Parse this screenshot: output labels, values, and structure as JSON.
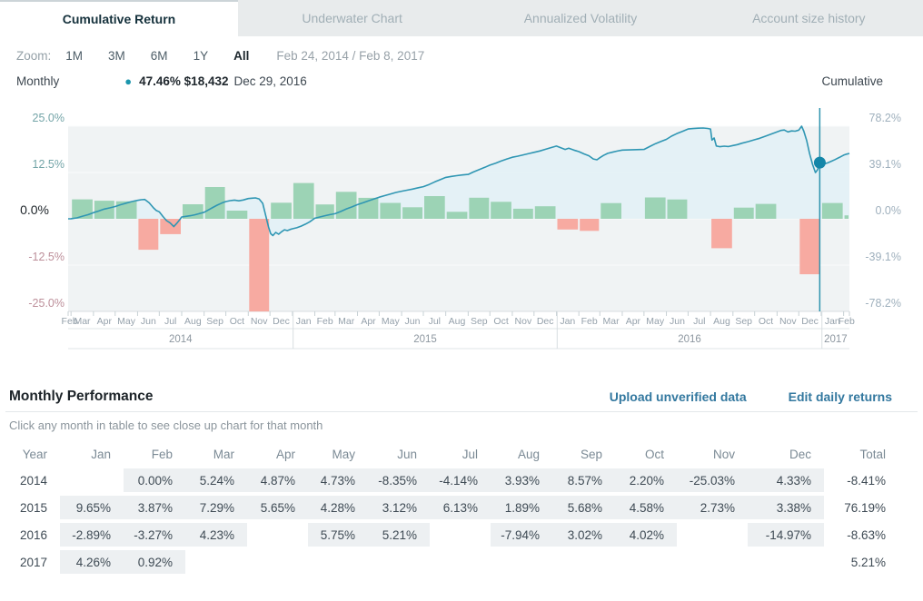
{
  "tabs": [
    {
      "label": "Cumulative Return",
      "active": true
    },
    {
      "label": "Underwater Chart",
      "active": false
    },
    {
      "label": "Annualized Volatility",
      "active": false
    },
    {
      "label": "Account size history",
      "active": false
    }
  ],
  "zoom_bar": {
    "label": "Zoom:",
    "options": [
      "1M",
      "3M",
      "6M",
      "1Y",
      "All"
    ],
    "active_option": "All",
    "date_range": "Feb 24, 2014 / Feb 8, 2017"
  },
  "legend": {
    "left_label": "Monthly",
    "marker_value": "47.46% $18,432",
    "marker_date": "Dec 29, 2016",
    "right_label": "Cumulative"
  },
  "chart_data": {
    "type": "combo",
    "bar_series_name": "Monthly",
    "line_series_name": "Cumulative",
    "left_axis": {
      "ticks": [
        "25.0%",
        "12.5%",
        "0.0%",
        "-12.5%",
        "-25.0%"
      ],
      "values": [
        25,
        12.5,
        0,
        -12.5,
        -25
      ]
    },
    "right_axis": {
      "ticks": [
        "78.2%",
        "39.1%",
        "0.0%",
        "-39.1%",
        "-78.2%"
      ],
      "values": [
        78.2,
        39.1,
        0,
        -39.1,
        -78.2
      ]
    },
    "x_range": {
      "start": "Feb 24, 2014",
      "end": "Feb 8, 2017",
      "total_days": 1080
    },
    "x_months": [
      "Feb",
      "Mar",
      "Apr",
      "May",
      "Jun",
      "Jul",
      "Aug",
      "Sep",
      "Oct",
      "Nov",
      "Dec",
      "Jan",
      "Feb",
      "Mar",
      "Apr",
      "May",
      "Jun",
      "Jul",
      "Aug",
      "Sep",
      "Oct",
      "Nov",
      "Dec",
      "Jan",
      "Feb",
      "Mar",
      "Apr",
      "May",
      "Jun",
      "Jul",
      "Aug",
      "Sep",
      "Oct",
      "Nov",
      "Dec",
      "Jan",
      "Feb"
    ],
    "month_boundaries_days": [
      0,
      4,
      35,
      65,
      96,
      126,
      157,
      188,
      218,
      249,
      279,
      310,
      341,
      369,
      400,
      430,
      461,
      491,
      522,
      553,
      583,
      614,
      644,
      675,
      706,
      735,
      766,
      796,
      827,
      857,
      888,
      919,
      949,
      980,
      1010,
      1041,
      1072,
      1080
    ],
    "monthly_returns": [
      0.0,
      5.24,
      4.87,
      4.73,
      -8.35,
      -4.14,
      3.93,
      8.57,
      2.2,
      -25.03,
      4.33,
      9.65,
      3.87,
      7.29,
      5.65,
      4.28,
      3.12,
      6.13,
      1.89,
      5.68,
      4.58,
      2.73,
      3.38,
      -2.89,
      -3.27,
      4.23,
      null,
      5.75,
      5.21,
      null,
      -7.94,
      3.02,
      4.02,
      null,
      -14.97,
      4.26,
      0.92
    ],
    "year_sections": [
      {
        "label": "2014",
        "start_d": 0,
        "end_d": 311
      },
      {
        "label": "2015",
        "start_d": 311,
        "end_d": 676
      },
      {
        "label": "2016",
        "start_d": 676,
        "end_d": 1042
      },
      {
        "label": "2017",
        "start_d": 1042,
        "end_d": 1080
      }
    ],
    "cumulative_line": [
      [
        0,
        0
      ],
      [
        4,
        0.1
      ],
      [
        12,
        0.8
      ],
      [
        20,
        2.2
      ],
      [
        28,
        3.5
      ],
      [
        35,
        5.24
      ],
      [
        42,
        6.5
      ],
      [
        50,
        8.2
      ],
      [
        58,
        9.3
      ],
      [
        65,
        10.37
      ],
      [
        72,
        11.8
      ],
      [
        80,
        13.2
      ],
      [
        88,
        14.6
      ],
      [
        96,
        15.59
      ],
      [
        101,
        16.1
      ],
      [
        106,
        16.3
      ],
      [
        112,
        13.5
      ],
      [
        118,
        9.2
      ],
      [
        122,
        7
      ],
      [
        126,
        5.94
      ],
      [
        131,
        2
      ],
      [
        136,
        -1.5
      ],
      [
        141,
        -3.5
      ],
      [
        146,
        -6.6
      ],
      [
        150,
        -4
      ],
      [
        153,
        -1.8
      ],
      [
        157,
        1.55
      ],
      [
        163,
        2.1
      ],
      [
        169,
        2.6
      ],
      [
        175,
        3.4
      ],
      [
        181,
        4.3
      ],
      [
        188,
        5.54
      ],
      [
        194,
        7.5
      ],
      [
        200,
        9.6
      ],
      [
        206,
        11.5
      ],
      [
        212,
        13.2
      ],
      [
        218,
        14.59
      ],
      [
        224,
        15.3
      ],
      [
        230,
        15.8
      ],
      [
        236,
        15.2
      ],
      [
        242,
        15.9
      ],
      [
        249,
        17.11
      ],
      [
        254,
        17.4
      ],
      [
        259,
        17.6
      ],
      [
        264,
        16.8
      ],
      [
        269,
        13
      ],
      [
        273,
        3
      ],
      [
        277,
        -7
      ],
      [
        280,
        -12.6
      ],
      [
        283,
        -14.2
      ],
      [
        287,
        -11.5
      ],
      [
        291,
        -13
      ],
      [
        295,
        -11
      ],
      [
        299,
        -9.3
      ],
      [
        303,
        -10
      ],
      [
        307,
        -9
      ],
      [
        310,
        -8.41
      ],
      [
        316,
        -7.6
      ],
      [
        322,
        -6.2
      ],
      [
        328,
        -4.5
      ],
      [
        334,
        -2.5
      ],
      [
        341,
        0.44
      ],
      [
        348,
        1.5
      ],
      [
        355,
        2.6
      ],
      [
        362,
        3.5
      ],
      [
        369,
        4.32
      ],
      [
        377,
        6.2
      ],
      [
        385,
        8.4
      ],
      [
        392,
        10
      ],
      [
        400,
        11.93
      ],
      [
        408,
        13.6
      ],
      [
        415,
        15.2
      ],
      [
        423,
        16.8
      ],
      [
        430,
        18.25
      ],
      [
        438,
        19.6
      ],
      [
        446,
        21
      ],
      [
        453,
        22.2
      ],
      [
        461,
        23.31
      ],
      [
        469,
        24.2
      ],
      [
        476,
        25.1
      ],
      [
        484,
        26.2
      ],
      [
        491,
        27.16
      ],
      [
        499,
        29
      ],
      [
        507,
        31.2
      ],
      [
        514,
        33
      ],
      [
        522,
        34.96
      ],
      [
        530,
        35.8
      ],
      [
        537,
        36.4
      ],
      [
        545,
        37
      ],
      [
        553,
        37.51
      ],
      [
        560,
        39.5
      ],
      [
        568,
        41.5
      ],
      [
        576,
        43.5
      ],
      [
        583,
        45.32
      ],
      [
        591,
        47
      ],
      [
        598,
        48.7
      ],
      [
        606,
        50.4
      ],
      [
        614,
        51.97
      ],
      [
        621,
        52.8
      ],
      [
        629,
        54
      ],
      [
        637,
        55.1
      ],
      [
        644,
        56.12
      ],
      [
        652,
        57.3
      ],
      [
        660,
        58.7
      ],
      [
        668,
        60.2
      ],
      [
        675,
        61.4
      ],
      [
        681,
        60
      ],
      [
        687,
        58.6
      ],
      [
        692,
        59.6
      ],
      [
        699,
        58
      ],
      [
        706,
        56.73
      ],
      [
        713,
        54.8
      ],
      [
        720,
        53.2
      ],
      [
        726,
        50.5
      ],
      [
        731,
        49.8
      ],
      [
        735,
        51.61
      ],
      [
        740,
        53.5
      ],
      [
        746,
        55.3
      ],
      [
        752,
        56.2
      ],
      [
        759,
        57.2
      ],
      [
        766,
        58.02
      ],
      [
        776,
        58.2
      ],
      [
        786,
        58.4
      ],
      [
        796,
        58.6
      ],
      [
        804,
        61
      ],
      [
        812,
        63.5
      ],
      [
        820,
        65.5
      ],
      [
        827,
        67.11
      ],
      [
        834,
        69.8
      ],
      [
        841,
        71.8
      ],
      [
        849,
        73.8
      ],
      [
        857,
        75.81
      ],
      [
        864,
        76.2
      ],
      [
        871,
        76.5
      ],
      [
        878,
        76.7
      ],
      [
        884,
        76.3
      ],
      [
        888,
        75.81
      ],
      [
        890,
        66.5
      ],
      [
        893,
        68.2
      ],
      [
        896,
        61.5
      ],
      [
        901,
        60.9
      ],
      [
        907,
        61.3
      ],
      [
        913,
        61
      ],
      [
        919,
        61.85
      ],
      [
        925,
        62.6
      ],
      [
        931,
        63.8
      ],
      [
        940,
        65.2
      ],
      [
        949,
        66.74
      ],
      [
        956,
        68
      ],
      [
        964,
        69.8
      ],
      [
        972,
        71.6
      ],
      [
        980,
        73.45
      ],
      [
        985,
        74.6
      ],
      [
        990,
        75
      ],
      [
        995,
        73.4
      ],
      [
        1000,
        74.2
      ],
      [
        1005,
        74
      ],
      [
        1010,
        74.9
      ],
      [
        1014,
        78.2
      ],
      [
        1017,
        74
      ],
      [
        1021,
        66
      ],
      [
        1025,
        55
      ],
      [
        1029,
        46
      ],
      [
        1033,
        39
      ],
      [
        1036,
        41.5
      ],
      [
        1039,
        47.46
      ],
      [
        1042,
        46
      ],
      [
        1046,
        46.5
      ],
      [
        1050,
        47.2
      ],
      [
        1055,
        48.6
      ],
      [
        1060,
        50
      ],
      [
        1066,
        51.8
      ],
      [
        1072,
        53.76
      ],
      [
        1076,
        54.6
      ],
      [
        1080,
        55.18
      ]
    ],
    "marker": {
      "d": 1039,
      "value": 47.46,
      "date": "Dec 29, 2016"
    }
  },
  "performance": {
    "title": "Monthly Performance",
    "links": [
      {
        "label": "Upload unverified data"
      },
      {
        "label": "Edit daily returns"
      }
    ],
    "subtitle": "Click any month in table to see close up chart for that month",
    "headers": [
      "Year",
      "Jan",
      "Feb",
      "Mar",
      "Apr",
      "May",
      "Jun",
      "Jul",
      "Aug",
      "Sep",
      "Oct",
      "Nov",
      "Dec",
      "Total"
    ],
    "rows": [
      {
        "year": "2014",
        "values": [
          "",
          "0.00%",
          "5.24%",
          "4.87%",
          "4.73%",
          "-8.35%",
          "-4.14%",
          "3.93%",
          "8.57%",
          "2.20%",
          "-25.03%",
          "4.33%"
        ],
        "total": "-8.41%"
      },
      {
        "year": "2015",
        "values": [
          "9.65%",
          "3.87%",
          "7.29%",
          "5.65%",
          "4.28%",
          "3.12%",
          "6.13%",
          "1.89%",
          "5.68%",
          "4.58%",
          "2.73%",
          "3.38%"
        ],
        "total": "76.19%"
      },
      {
        "year": "2016",
        "values": [
          "-2.89%",
          "-3.27%",
          "4.23%",
          "",
          "5.75%",
          "5.21%",
          "",
          "-7.94%",
          "3.02%",
          "4.02%",
          "",
          "-14.97%"
        ],
        "total": "-8.63%"
      },
      {
        "year": "2017",
        "values": [
          "4.26%",
          "0.92%",
          "",
          "",
          "",
          "",
          "",
          "",
          "",
          "",
          "",
          ""
        ],
        "total": "5.21%"
      }
    ]
  },
  "colors": {
    "accent_teal": "#1b96ad",
    "bar_positive": "#9cd3b5",
    "bar_negative": "#f7aaa1",
    "line": "#2f96b3",
    "area_fill": "#e2f0f6",
    "marker_dot": "#1486a8",
    "crosshair": "#2e93ae",
    "plot_bg": "#f0f3f4",
    "gridline": "#fafbfb",
    "axis_line": "#d8dee1",
    "axis_positive_label": "#74a5a8",
    "axis_zero_label": "#1d2429",
    "axis_negative_label": "#bd8f9a",
    "axis_right_label": "#9fb0bd",
    "month_label": "#95a1ab",
    "year_label": "#8d97a0",
    "link": "#33789f",
    "negative_text": "#9c4550",
    "cell_bg": "#edf0f2",
    "tab_bg": "#e8ebec"
  }
}
